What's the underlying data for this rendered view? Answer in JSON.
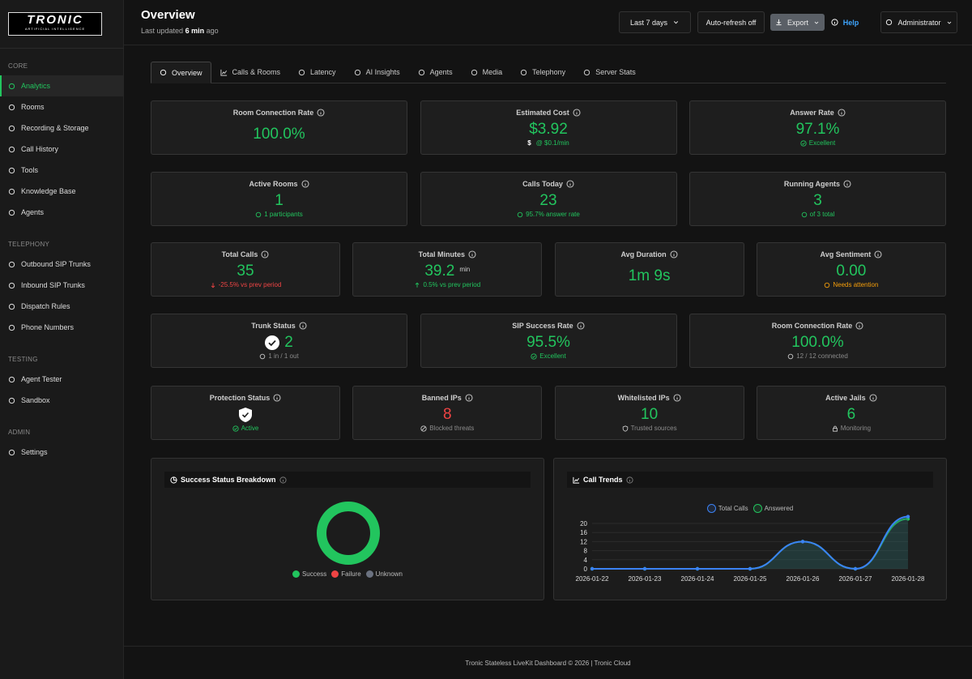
{
  "logo": {
    "name": "TRONIC",
    "tagline": "ARTIFICIAL INTELLIGENCE"
  },
  "sidebar": {
    "active_section": 0,
    "active_item": 0,
    "sections": [
      {
        "title": "CORE",
        "items": [
          "Analytics",
          "Rooms",
          "Recording & Storage",
          "Call History",
          "Tools",
          "Knowledge Base",
          "Agents"
        ]
      },
      {
        "title": "TELEPHONY",
        "items": [
          "Outbound SIP Trunks",
          "Inbound SIP Trunks",
          "Dispatch Rules",
          "Phone Numbers"
        ]
      },
      {
        "title": "TESTING",
        "items": [
          "Agent Tester",
          "Sandbox"
        ]
      },
      {
        "title": "ADMIN",
        "items": [
          "Settings"
        ]
      }
    ]
  },
  "header": {
    "title": "Overview",
    "updated_label": "Last updated",
    "updated_value": "6 min",
    "updated_suffix": "ago",
    "range": "Last 7 days",
    "refresh": "Auto-refresh off",
    "export": "Export",
    "help": "Help",
    "user": "Administrator"
  },
  "tabs": {
    "active": 0,
    "items": [
      "Overview",
      "Calls & Rooms",
      "Latency",
      "AI Insights",
      "Agents",
      "Media",
      "Telephony",
      "Server Stats"
    ]
  },
  "card_rows": [
    [
      {
        "title": "Room Connection Rate",
        "value": "100.0%",
        "value_color": "#22c55e"
      },
      {
        "title": "Estimated Cost",
        "value": "$3.92",
        "value_color": "#22c55e",
        "sub_symbol": "$",
        "sub": "@ $0.1/min",
        "sub_color": "#22c55e"
      },
      {
        "title": "Answer Rate",
        "value": "97.1%",
        "value_color": "#22c55e",
        "sub": "Excellent",
        "sub_color": "#22c55e"
      }
    ],
    [
      {
        "title": "Active Rooms",
        "value": "1",
        "value_color": "#22c55e",
        "sub": "1 participants",
        "sub_color": "#22c55e"
      },
      {
        "title": "Calls Today",
        "value": "23",
        "value_color": "#22c55e",
        "sub": "95.7% answer rate",
        "sub_color": "#22c55e"
      },
      {
        "title": "Running Agents",
        "value": "3",
        "value_color": "#22c55e",
        "sub": "of 3 total",
        "sub_color": "#22c55e"
      }
    ],
    [
      {
        "title": "Total Calls",
        "value": "35",
        "value_color": "#22c55e",
        "sub": "-25.5% vs prev period",
        "sub_color": "#ef4444"
      },
      {
        "title": "Total Minutes",
        "value": "39.2",
        "unit": "min",
        "value_color": "#22c55e",
        "sub": "0.5% vs prev period",
        "sub_color": "#22c55e"
      },
      {
        "title": "Avg Duration",
        "value": "1m 9s",
        "value_color": "#22c55e"
      },
      {
        "title": "Avg Sentiment",
        "value": "0.00",
        "value_color": "#22c55e",
        "sub": "Needs attention",
        "sub_color": "#f59e0b"
      }
    ],
    [
      {
        "title": "Trunk Status",
        "value": "2",
        "value_color": "#22c55e",
        "sub": "1 in / 1 out",
        "sub_color": "#8b8b8b"
      },
      {
        "title": "SIP Success Rate",
        "value": "95.5%",
        "value_color": "#22c55e",
        "sub": "Excellent",
        "sub_color": "#22c55e"
      },
      {
        "title": "Room Connection Rate",
        "value": "100.0%",
        "value_color": "#22c55e",
        "sub": "12 / 12 connected",
        "sub_color": "#8b8b8b"
      }
    ],
    [
      {
        "title": "Protection Status",
        "sub": "Active",
        "sub_color": "#22c55e"
      },
      {
        "title": "Banned IPs",
        "value": "8",
        "value_color": "#ef4444",
        "sub": "Blocked threats",
        "sub_color": "#8b8b8b"
      },
      {
        "title": "Whitelisted IPs",
        "value": "10",
        "value_color": "#22c55e",
        "sub": "Trusted sources",
        "sub_color": "#8b8b8b"
      },
      {
        "title": "Active Jails",
        "value": "6",
        "value_color": "#22c55e",
        "sub": "Monitoring",
        "sub_color": "#8b8b8b"
      }
    ]
  ],
  "chart_data": [
    {
      "type": "donut",
      "title": "Success Status Breakdown",
      "categories": [
        "Success",
        "Failure",
        "Unknown"
      ],
      "values": [
        100,
        0,
        0
      ],
      "colors": [
        "#22c55e",
        "#ef4444",
        "#6b7280"
      ]
    },
    {
      "type": "line",
      "title": "Call Trends",
      "categories": [
        "2026-01-22",
        "2026-01-23",
        "2026-01-24",
        "2026-01-25",
        "2026-01-26",
        "2026-01-27",
        "2026-01-28"
      ],
      "series": [
        {
          "name": "Total Calls",
          "color": "#3b82f6",
          "values": [
            0,
            0,
            0,
            0,
            12,
            0,
            23
          ]
        },
        {
          "name": "Answered",
          "color": "#22c55e",
          "values": [
            0,
            0,
            0,
            0,
            12,
            0,
            22
          ]
        }
      ],
      "ylim": [
        0,
        23
      ],
      "yticks": [
        0,
        4,
        8,
        12,
        16,
        20
      ],
      "grid": true
    }
  ],
  "footer": "Tronic Stateless LiveKit Dashboard © 2026 | Tronic Cloud"
}
